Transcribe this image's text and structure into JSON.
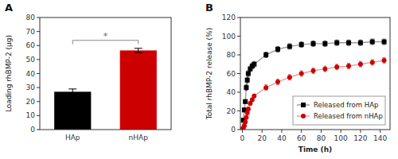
{
  "chart_data": [
    {
      "type": "bar",
      "title": "A",
      "categories": [
        "HAp",
        "nHAp"
      ],
      "values": [
        27.0,
        56.5
      ],
      "errors": [
        2.0,
        1.5
      ],
      "colors": [
        "#000000",
        "#cc0000"
      ],
      "y_label": "Loading rhBMP-2 (μg)",
      "ylim": [
        0,
        80
      ],
      "yticks": [
        0,
        10,
        20,
        30,
        40,
        50,
        60,
        70,
        80
      ],
      "annotations": [
        {
          "text": "*"
        }
      ],
      "grid": false
    },
    {
      "type": "line",
      "title": "B",
      "x": [
        0,
        1,
        2,
        3,
        4,
        5,
        6,
        8,
        10,
        12,
        24,
        36,
        48,
        60,
        72,
        84,
        96,
        108,
        120,
        132,
        144
      ],
      "series": [
        {
          "name": "Released from HAp",
          "color": "#000000",
          "marker": "square",
          "values": [
            0,
            10,
            21,
            30,
            45,
            53,
            60,
            65,
            68,
            70,
            80,
            86,
            89,
            91,
            92,
            92,
            93,
            93,
            93,
            94,
            94
          ],
          "errors": [
            0,
            2,
            2,
            2,
            3,
            3,
            3,
            3,
            3,
            3,
            3,
            3,
            3,
            3,
            3,
            3,
            3,
            3,
            3,
            3,
            3
          ]
        },
        {
          "name": "Released from nHAp",
          "color": "#cc0000",
          "marker": "circle",
          "values": [
            0,
            2,
            4,
            8,
            13,
            18,
            22,
            28,
            32,
            36,
            45,
            51,
            56,
            60,
            63,
            65,
            67,
            68,
            70,
            72,
            74
          ],
          "errors": [
            0,
            1,
            1,
            1,
            2,
            2,
            2,
            2,
            2,
            2,
            3,
            3,
            3,
            3,
            3,
            3,
            3,
            3,
            3,
            3,
            3
          ]
        }
      ],
      "x_label": "Time (h)",
      "y_label": "Total rhBMP-2 release (%)",
      "xlim": [
        -2,
        150
      ],
      "ylim": [
        0,
        120
      ],
      "xticks": [
        0,
        20,
        40,
        60,
        80,
        100,
        120,
        140
      ],
      "yticks": [
        0,
        20,
        40,
        60,
        80,
        100,
        120
      ],
      "legend": "lower right",
      "grid": false
    }
  ]
}
